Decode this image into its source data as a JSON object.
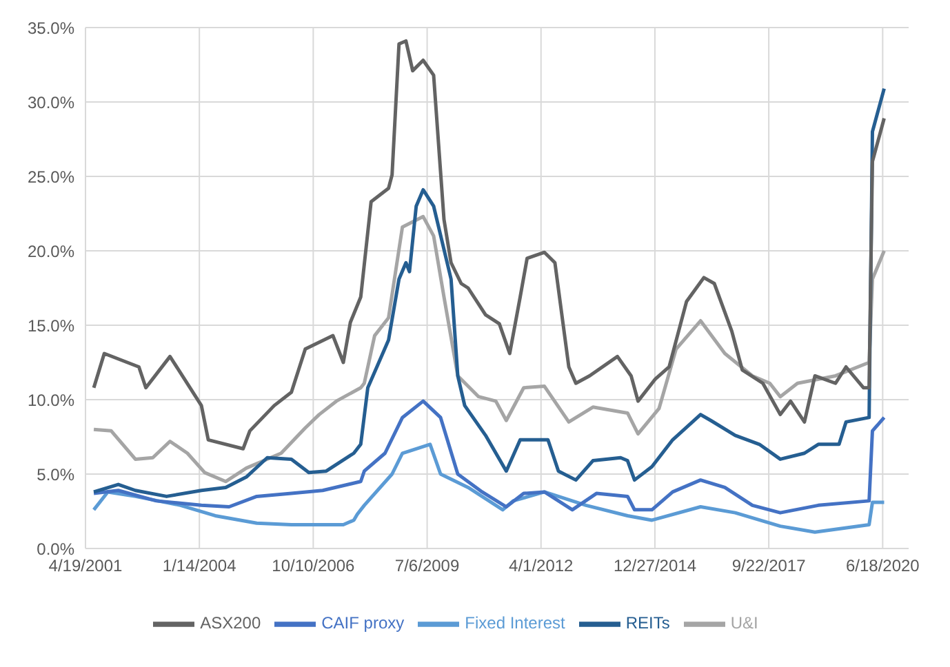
{
  "chart_data": {
    "type": "line",
    "marker": "none",
    "line_style": "solid",
    "grid": true,
    "legend": "bottom",
    "xlim": [
      "2001-04-19",
      "2021-02-01"
    ],
    "xticks": [
      {
        "value": "2001-04-19",
        "label": "4/19/2001"
      },
      {
        "value": "2004-01-14",
        "label": "1/14/2004"
      },
      {
        "value": "2006-10-10",
        "label": "10/10/2006"
      },
      {
        "value": "2009-07-06",
        "label": "7/6/2009"
      },
      {
        "value": "2012-04-01",
        "label": "4/1/2012"
      },
      {
        "value": "2014-12-27",
        "label": "12/27/2014"
      },
      {
        "value": "2017-09-22",
        "label": "9/22/2017"
      },
      {
        "value": "2020-06-18",
        "label": "6/18/2020"
      }
    ],
    "ylim": [
      0,
      35
    ],
    "yticks": [
      {
        "value": 0,
        "label": "0.0%"
      },
      {
        "value": 5,
        "label": "5.0%"
      },
      {
        "value": 10,
        "label": "10.0%"
      },
      {
        "value": 15,
        "label": "15.0%"
      },
      {
        "value": 20,
        "label": "20.0%"
      },
      {
        "value": 25,
        "label": "25.0%"
      },
      {
        "value": 30,
        "label": "30.0%"
      },
      {
        "value": 35,
        "label": "35.0%"
      }
    ],
    "series": [
      {
        "name": "Fixed Interest",
        "color": "#5b9bd5",
        "x": [
          "2001-07",
          "2001-11",
          "2002-07",
          "2003-08",
          "2004-06",
          "2005-06",
          "2006-04",
          "2007-07",
          "2007-10",
          "2007-11",
          "2008-01",
          "2008-09",
          "2008-12",
          "2009-08",
          "2009-11",
          "2010-07",
          "2011-05",
          "2011-08",
          "2012-05",
          "2013-05",
          "2014-05",
          "2014-12",
          "2016-02",
          "2016-12",
          "2018-01",
          "2018-11",
          "2020-02-20",
          "2020-03-20",
          "2020-07"
        ],
        "values": [
          2.6,
          3.8,
          3.5,
          2.9,
          2.2,
          1.7,
          1.6,
          1.6,
          1.9,
          2.3,
          2.9,
          5.0,
          6.4,
          7.0,
          5.0,
          4.1,
          2.6,
          3.2,
          3.8,
          2.9,
          2.2,
          1.9,
          2.8,
          2.4,
          1.5,
          1.1,
          1.6,
          3.1,
          3.1
        ]
      },
      {
        "name": "U&I",
        "color": "#a5a5a5",
        "x": [
          "2001-07",
          "2001-12",
          "2002-07",
          "2002-12",
          "2003-05",
          "2003-10",
          "2004-03",
          "2004-09",
          "2005-03",
          "2006-01",
          "2006-08",
          "2006-12",
          "2007-05",
          "2007-12",
          "2008-01",
          "2008-04",
          "2008-08",
          "2008-12",
          "2009-06",
          "2009-09",
          "2009-12",
          "2010-04",
          "2010-10",
          "2011-03",
          "2011-06",
          "2011-11",
          "2012-05",
          "2012-12",
          "2013-07",
          "2014-05",
          "2014-08",
          "2015-02",
          "2015-07",
          "2016-02",
          "2016-09",
          "2017-05",
          "2017-10",
          "2018-01",
          "2018-06",
          "2019-05",
          "2020-02-20",
          "2020-03-20",
          "2020-07"
        ],
        "values": [
          8.0,
          7.9,
          6.0,
          6.1,
          7.2,
          6.4,
          5.1,
          4.5,
          5.4,
          6.4,
          8.1,
          9.0,
          9.9,
          10.8,
          11.1,
          14.3,
          15.5,
          21.6,
          22.3,
          21.0,
          16.9,
          11.6,
          10.2,
          9.9,
          8.6,
          10.8,
          10.9,
          8.5,
          9.5,
          9.1,
          7.7,
          9.4,
          13.4,
          15.3,
          13.1,
          11.6,
          11.1,
          10.2,
          11.1,
          11.6,
          12.5,
          18.1,
          20.0
        ]
      },
      {
        "name": "CAIF proxy",
        "color": "#4472c4",
        "x": [
          "2001-07",
          "2002-02",
          "2003-01",
          "2004-02",
          "2004-10",
          "2005-06",
          "2006-04",
          "2007-01",
          "2007-12",
          "2008-01",
          "2008-07",
          "2008-12",
          "2009-06",
          "2009-11",
          "2010-04",
          "2010-11",
          "2011-06",
          "2011-11",
          "2012-05",
          "2013-01",
          "2013-08",
          "2014-05",
          "2014-07",
          "2014-12",
          "2015-06",
          "2016-02",
          "2016-09",
          "2017-05",
          "2018-01",
          "2018-12",
          "2020-02-20",
          "2020-03-20",
          "2020-07"
        ],
        "values": [
          3.7,
          3.9,
          3.2,
          2.9,
          2.8,
          3.5,
          3.7,
          3.9,
          4.5,
          5.2,
          6.4,
          8.8,
          9.9,
          8.8,
          5.0,
          3.8,
          2.8,
          3.7,
          3.8,
          2.6,
          3.7,
          3.5,
          2.6,
          2.6,
          3.8,
          4.6,
          4.1,
          2.9,
          2.4,
          2.9,
          3.2,
          7.9,
          8.8
        ]
      },
      {
        "name": "REITs",
        "color": "#255e91",
        "x": [
          "2001-07",
          "2002-02",
          "2002-07",
          "2003-04",
          "2004-02",
          "2004-09",
          "2005-03",
          "2005-09",
          "2006-04",
          "2006-09",
          "2007-02",
          "2007-10",
          "2007-12",
          "2008-02",
          "2008-08",
          "2008-11",
          "2009-01",
          "2009-02",
          "2009-04",
          "2009-06",
          "2009-09",
          "2010-02",
          "2010-04",
          "2010-06",
          "2010-12",
          "2011-06",
          "2011-10",
          "2012-06",
          "2012-09",
          "2013-02",
          "2013-07",
          "2014-03",
          "2014-05",
          "2014-07",
          "2014-12",
          "2015-06",
          "2016-02",
          "2016-05",
          "2016-12",
          "2017-07",
          "2018-01",
          "2018-08",
          "2018-12",
          "2019-06",
          "2019-08",
          "2020-02-20",
          "2020-03-20",
          "2020-07"
        ],
        "values": [
          3.8,
          4.3,
          3.9,
          3.5,
          3.9,
          4.1,
          4.8,
          6.1,
          6.0,
          5.1,
          5.2,
          6.4,
          7.0,
          10.8,
          14.0,
          18.1,
          19.2,
          18.6,
          23.0,
          24.1,
          23.0,
          18.1,
          11.6,
          9.6,
          7.6,
          5.2,
          7.3,
          7.3,
          5.2,
          4.6,
          5.9,
          6.1,
          5.9,
          4.6,
          5.5,
          7.3,
          9.0,
          8.6,
          7.6,
          7.0,
          6.0,
          6.4,
          7.0,
          7.0,
          8.5,
          8.8,
          28.0,
          30.9
        ]
      },
      {
        "name": "ASX200",
        "color": "#636363",
        "x": [
          "2001-07",
          "2001-10",
          "2002-08",
          "2002-10",
          "2003-05",
          "2004-02",
          "2004-04",
          "2005-02",
          "2005-04",
          "2005-11",
          "2006-04",
          "2006-08",
          "2007-04",
          "2007-07",
          "2007-09",
          "2007-12",
          "2008-03",
          "2008-08",
          "2008-09",
          "2008-11",
          "2009-01",
          "2009-03",
          "2009-06",
          "2009-09",
          "2009-12",
          "2010-02",
          "2010-05",
          "2010-07",
          "2010-12",
          "2011-04",
          "2011-07",
          "2011-10",
          "2011-12",
          "2012-05",
          "2012-08",
          "2012-12",
          "2013-02",
          "2013-06",
          "2014-02",
          "2014-06",
          "2014-08",
          "2015-01",
          "2015-05",
          "2015-10",
          "2016-03",
          "2016-06",
          "2016-11",
          "2017-02",
          "2017-08",
          "2018-01",
          "2018-04",
          "2018-08",
          "2018-11",
          "2019-05",
          "2019-08",
          "2020-01",
          "2020-02-20",
          "2020-03-20",
          "2020-07"
        ],
        "values": [
          10.8,
          13.1,
          12.2,
          10.8,
          12.9,
          9.6,
          7.3,
          6.7,
          7.9,
          9.6,
          10.5,
          13.4,
          14.3,
          12.5,
          15.2,
          16.9,
          23.3,
          24.2,
          25.1,
          33.9,
          34.1,
          32.1,
          32.8,
          31.8,
          22.1,
          19.2,
          17.8,
          17.5,
          15.7,
          15.1,
          13.1,
          16.9,
          19.5,
          19.9,
          19.2,
          12.2,
          11.1,
          11.6,
          12.9,
          11.6,
          9.9,
          11.4,
          12.2,
          16.6,
          18.2,
          17.8,
          14.6,
          12.0,
          11.1,
          9.0,
          9.9,
          8.5,
          11.6,
          11.1,
          12.2,
          10.8,
          10.8,
          26.0,
          28.9
        ]
      }
    ]
  }
}
